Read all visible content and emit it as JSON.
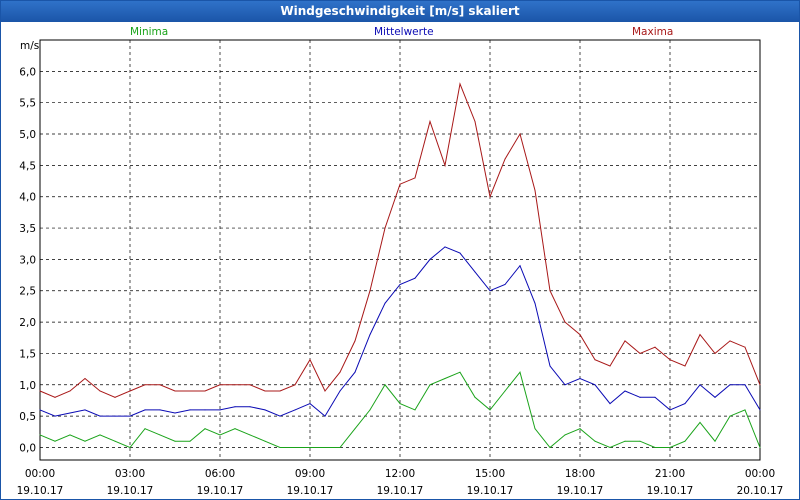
{
  "window": {
    "title": "Windgeschwindigkeit [m/s] skaliert"
  },
  "colors": {
    "minima": "#1aa31a",
    "mittel": "#0a0ab4",
    "maxima": "#a81818",
    "grid": "#000000",
    "titlebar": "#1b55a8"
  },
  "chart_data": {
    "type": "line",
    "title": "Windgeschwindigkeit [m/s] skaliert",
    "ylabel": "m/s",
    "ylim": [
      -0.2,
      6.5
    ],
    "yticks": [
      "0,0",
      "0,5",
      "1,0",
      "1,5",
      "2,0",
      "2,5",
      "3,0",
      "3,5",
      "4,0",
      "4,5",
      "5,0",
      "5,5",
      "6,0"
    ],
    "xlim": [
      0,
      24
    ],
    "xticks": [
      {
        "time": "00:00",
        "date": "19.10.17"
      },
      {
        "time": "03:00",
        "date": "19.10.17"
      },
      {
        "time": "06:00",
        "date": "19.10.17"
      },
      {
        "time": "09:00",
        "date": "19.10.17"
      },
      {
        "time": "12:00",
        "date": "19.10.17"
      },
      {
        "time": "15:00",
        "date": "19.10.17"
      },
      {
        "time": "18:00",
        "date": "19.10.17"
      },
      {
        "time": "21:00",
        "date": "19.10.17"
      },
      {
        "time": "00:00",
        "date": "20.10.17"
      }
    ],
    "grid": true,
    "legend": [
      "Minima",
      "Mittelwerte",
      "Maxima"
    ],
    "series": [
      {
        "name": "Maxima",
        "x": [
          0,
          0.5,
          1,
          1.5,
          2,
          2.5,
          3,
          3.5,
          4,
          4.5,
          5,
          5.5,
          6,
          6.5,
          7,
          7.5,
          8,
          8.5,
          9,
          9.5,
          10,
          10.5,
          11,
          11.5,
          12,
          12.5,
          13,
          13.5,
          14,
          14.5,
          15,
          15.5,
          16,
          16.5,
          17,
          17.5,
          18,
          18.5,
          19,
          19.5,
          20,
          20.5,
          21,
          21.5,
          22,
          22.5,
          23,
          23.5,
          24
        ],
        "y": [
          0.9,
          0.8,
          0.9,
          1.1,
          0.9,
          0.8,
          0.9,
          1.0,
          1.0,
          0.9,
          0.9,
          0.9,
          1.0,
          1.0,
          1.0,
          0.9,
          0.9,
          1.0,
          1.4,
          0.9,
          1.2,
          1.7,
          2.5,
          3.5,
          4.2,
          4.3,
          5.2,
          4.5,
          5.8,
          5.2,
          4.0,
          4.6,
          5.0,
          4.1,
          2.5,
          2.0,
          1.8,
          1.4,
          1.3,
          1.7,
          1.5,
          1.6,
          1.4,
          1.3,
          1.8,
          1.5,
          1.7,
          1.6,
          1.0
        ]
      },
      {
        "name": "Mittelwerte",
        "x": [
          0,
          0.5,
          1,
          1.5,
          2,
          2.5,
          3,
          3.5,
          4,
          4.5,
          5,
          5.5,
          6,
          6.5,
          7,
          7.5,
          8,
          8.5,
          9,
          9.5,
          10,
          10.5,
          11,
          11.5,
          12,
          12.5,
          13,
          13.5,
          14,
          14.5,
          15,
          15.5,
          16,
          16.5,
          17,
          17.5,
          18,
          18.5,
          19,
          19.5,
          20,
          20.5,
          21,
          21.5,
          22,
          22.5,
          23,
          23.5,
          24
        ],
        "y": [
          0.6,
          0.5,
          0.55,
          0.6,
          0.5,
          0.5,
          0.5,
          0.6,
          0.6,
          0.55,
          0.6,
          0.6,
          0.6,
          0.65,
          0.65,
          0.6,
          0.5,
          0.6,
          0.7,
          0.5,
          0.9,
          1.2,
          1.8,
          2.3,
          2.6,
          2.7,
          3.0,
          3.2,
          3.1,
          2.8,
          2.5,
          2.6,
          2.9,
          2.3,
          1.3,
          1.0,
          1.1,
          1.0,
          0.7,
          0.9,
          0.8,
          0.8,
          0.6,
          0.7,
          1.0,
          0.8,
          1.0,
          1.0,
          0.6
        ]
      },
      {
        "name": "Minima",
        "x": [
          0,
          0.5,
          1,
          1.5,
          2,
          2.5,
          3,
          3.5,
          4,
          4.5,
          5,
          5.5,
          6,
          6.5,
          7,
          7.5,
          8,
          8.5,
          9,
          9.5,
          10,
          10.5,
          11,
          11.5,
          12,
          12.5,
          13,
          13.5,
          14,
          14.5,
          15,
          15.5,
          16,
          16.5,
          17,
          17.5,
          18,
          18.5,
          19,
          19.5,
          20,
          20.5,
          21,
          21.5,
          22,
          22.5,
          23,
          23.5,
          24
        ],
        "y": [
          0.2,
          0.1,
          0.2,
          0.1,
          0.2,
          0.1,
          0.0,
          0.3,
          0.2,
          0.1,
          0.1,
          0.3,
          0.2,
          0.3,
          0.2,
          0.1,
          0.0,
          0.0,
          0.0,
          0.0,
          0.0,
          0.3,
          0.6,
          1.0,
          0.7,
          0.6,
          1.0,
          1.1,
          1.2,
          0.8,
          0.6,
          0.9,
          1.2,
          0.3,
          0.0,
          0.2,
          0.3,
          0.1,
          0.0,
          0.1,
          0.1,
          0.0,
          0.0,
          0.1,
          0.4,
          0.1,
          0.5,
          0.6,
          0.0
        ]
      }
    ]
  }
}
